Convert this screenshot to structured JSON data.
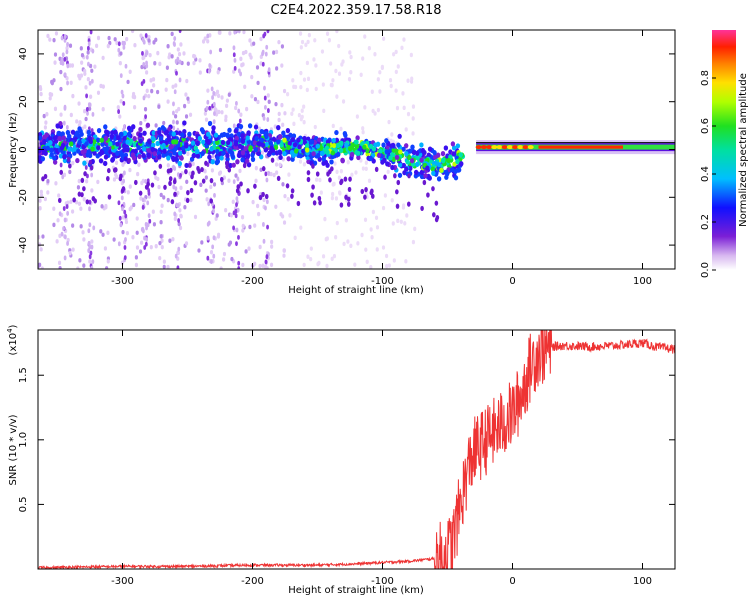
{
  "figure": {
    "title": "C2E4.2022.359.17.58.R18"
  },
  "chart_data": [
    {
      "type": "heatmap",
      "title": "C2E4.2022.359.17.58.R18",
      "xlabel": "Height of straight line (km)",
      "ylabel": "Frequency (Hz)",
      "xlim": [
        -365,
        125
      ],
      "ylim": [
        -50,
        50
      ],
      "xticks": [
        -300,
        -200,
        -100,
        0,
        100
      ],
      "xtick_labels": [
        "-300",
        "-200",
        "-100",
        "0",
        "100"
      ],
      "yticks": [
        -40,
        -20,
        0,
        20,
        40
      ],
      "ytick_labels": [
        "-40",
        "-20",
        "0",
        "20",
        "40"
      ],
      "colorbar": {
        "label": "Normalized spectral amplitude",
        "range": [
          0,
          1
        ],
        "ticks": [
          0.0,
          0.2,
          0.4,
          0.6,
          0.8
        ],
        "tick_labels": [
          "0.0",
          "0.2",
          "0.4",
          "0.6",
          "0.8"
        ],
        "colormap": "rainbow"
      },
      "dominant_frequency_track": {
        "x": [
          -360,
          -300,
          -250,
          -200,
          -190,
          -150,
          -120,
          -100,
          -80,
          -60,
          -50,
          -40,
          -30,
          -20,
          0,
          50,
          100,
          125
        ],
        "y": [
          2,
          2,
          2,
          1,
          3,
          0,
          1,
          -1,
          -4,
          -7,
          -6,
          -3,
          0,
          1,
          1,
          1,
          1,
          1
        ]
      },
      "grid": false
    },
    {
      "type": "line",
      "xlabel": "Height of straight line (km)",
      "ylabel": "SNR (10 * v/v)",
      "y_multiplier_label": "(x10",
      "y_multiplier_exp": "4",
      "xlim": [
        -365,
        125
      ],
      "ylim": [
        0,
        1.85
      ],
      "xticks": [
        -300,
        -200,
        -100,
        0,
        100
      ],
      "xtick_labels": [
        "-300",
        "-200",
        "-100",
        "0",
        "100"
      ],
      "yticks": [
        0.5,
        1.0,
        1.5
      ],
      "ytick_labels": [
        "0.5",
        "1.0",
        "1.5"
      ],
      "line_color": "#ee3333",
      "series": [
        {
          "x": [
            -365,
            -300,
            -250,
            -200,
            -150,
            -120,
            -100,
            -80,
            -60,
            -50,
            -45,
            -40,
            -35,
            -30,
            -25,
            -20,
            -15,
            -10,
            -5,
            0,
            5,
            10,
            15,
            20,
            25,
            30,
            40,
            60,
            80,
            100,
            110,
            125
          ],
          "values": [
            0.01,
            0.02,
            0.02,
            0.03,
            0.03,
            0.04,
            0.05,
            0.06,
            0.08,
            0.12,
            0.25,
            0.5,
            0.75,
            0.9,
            0.95,
            1.0,
            1.05,
            1.1,
            1.15,
            1.2,
            1.3,
            1.45,
            1.6,
            1.68,
            1.7,
            1.72,
            1.73,
            1.72,
            1.73,
            1.75,
            1.72,
            1.7
          ]
        }
      ],
      "grid": false
    }
  ]
}
